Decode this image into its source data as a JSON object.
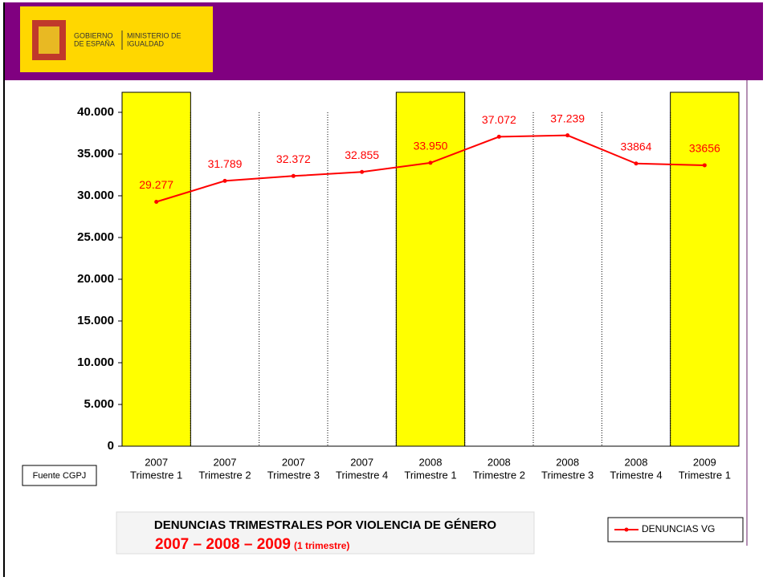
{
  "header": {
    "gov_line1": "GOBIERNO",
    "gov_line2": "DE ESPAÑA",
    "ministry_line1": "MINISTERIO DE",
    "ministry_line2": "IGUALDAD"
  },
  "chart_data": {
    "type": "line",
    "title": "DENUNCIAS TRIMESTRALES POR VIOLENCIA DE GÉNERO",
    "subtitle": "2007 – 2008 – 2009",
    "subtitle_note": "(1 trimestre)",
    "source": "Fuente CGPJ",
    "categories": [
      [
        "2007",
        "Trimestre 1"
      ],
      [
        "2007",
        "Trimestre 2"
      ],
      [
        "2007",
        "Trimestre 3"
      ],
      [
        "2007",
        "Trimestre 4"
      ],
      [
        "2008",
        "Trimestre 1"
      ],
      [
        "2008",
        "Trimestre 2"
      ],
      [
        "2008",
        "Trimestre 3"
      ],
      [
        "2008",
        "Trimestre 4"
      ],
      [
        "2009",
        "Trimestre 1"
      ]
    ],
    "series": [
      {
        "name": "DENUNCIAS VG",
        "color": "#ff0000",
        "values": [
          29277,
          31789,
          32372,
          32855,
          33950,
          37072,
          37239,
          33864,
          33656
        ],
        "value_labels": [
          "29.277",
          "31.789",
          "32.372",
          "32.855",
          "33.950",
          "37.072",
          "37.239",
          "33864",
          "33656"
        ]
      }
    ],
    "highlight_categories": [
      0,
      4,
      8
    ],
    "highlight_color": "#ffff00",
    "ylim": [
      0,
      42400
    ],
    "yticks": [
      0,
      {
        "value": 5000,
        "label": "5.000"
      },
      {
        "value": 10000,
        "label": "10.000"
      },
      {
        "value": 15000,
        "label": "15.000"
      },
      {
        "value": 20000,
        "label": "20.000"
      },
      {
        "value": 25000,
        "label": "25.000"
      },
      {
        "value": 30000,
        "label": "30.000"
      },
      {
        "value": 35000,
        "label": "35.000"
      },
      {
        "value": 40000,
        "label": "40.000"
      }
    ],
    "legend": "bottom-right"
  }
}
